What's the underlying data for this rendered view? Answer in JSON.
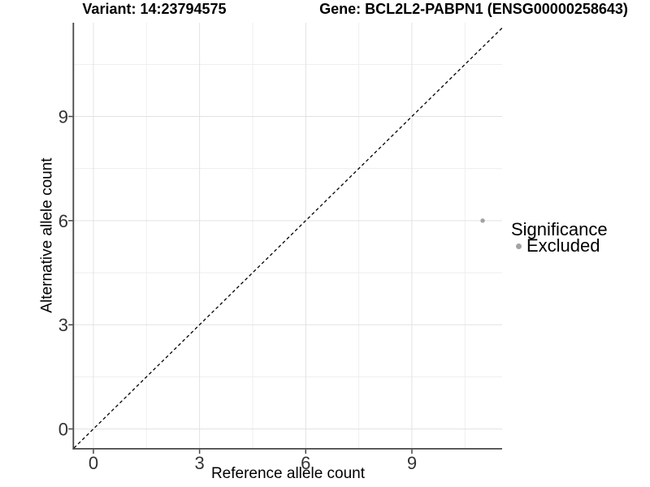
{
  "titles": {
    "variant": "Variant: 14:23794575",
    "gene": "Gene: BCL2L2-PABPN1 (ENSG00000258643)"
  },
  "axes": {
    "x_label": "Reference allele count",
    "y_label": "Alternative allele count"
  },
  "legend": {
    "title": "Significance",
    "items": [
      {
        "label": "Excluded",
        "color": "#a3a3a3"
      }
    ]
  },
  "chart_data": {
    "type": "scatter",
    "titles": {
      "left": "Variant: 14:23794575",
      "right": "Gene: BCL2L2-PABPN1 (ENSG00000258643)"
    },
    "xlabel": "Reference allele count",
    "ylabel": "Alternative allele count",
    "x_ticks": [
      0,
      3,
      6,
      9
    ],
    "y_ticks": [
      0,
      3,
      6,
      9
    ],
    "x_minor_ticks": [
      1.5,
      4.5,
      7.5,
      10.5
    ],
    "y_minor_ticks": [
      1.5,
      4.5,
      7.5,
      10.5
    ],
    "xlim": [
      -0.55,
      11.55
    ],
    "ylim": [
      -0.55,
      11.7
    ],
    "grid": "major+minor",
    "legend_position": "right",
    "series": [
      {
        "name": "Excluded",
        "color": "#a3a3a3",
        "points": [
          [
            11,
            6
          ]
        ]
      }
    ],
    "identity_line": {
      "style": "dashed",
      "color": "#000000",
      "slope": 1,
      "intercept": 0
    }
  },
  "colors": {
    "major_grid": "#e2e2e2",
    "minor_grid": "#eeeeee",
    "axis": "#474747",
    "tick_label": "#333333"
  }
}
